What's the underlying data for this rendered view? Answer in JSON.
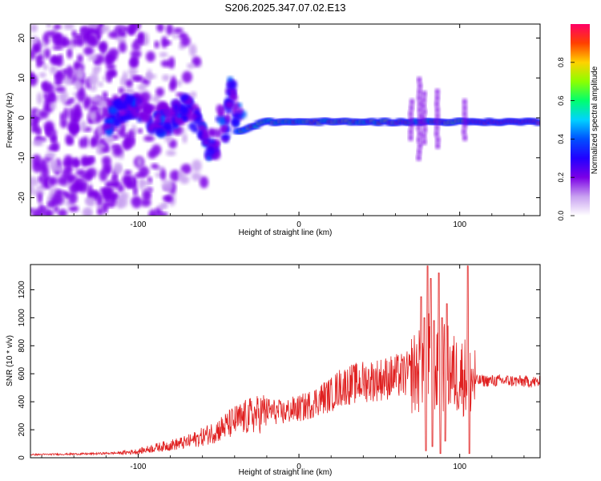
{
  "title": "S206.2025.347.07.02.E13",
  "colors": {
    "snr_line": "#e02020",
    "frame": "#000000",
    "colormap": [
      "#ffffff",
      "#c8a0f0",
      "#7b00e6",
      "#2200ff",
      "#0050ff",
      "#00d2ff",
      "#00ff6e",
      "#8cff00",
      "#ffd200",
      "#ff4000",
      "#ff0066"
    ]
  },
  "chart_data": [
    {
      "type": "heatmap",
      "name": "spectrogram",
      "title": "",
      "xlabel": "Height of straight line (km)",
      "ylabel": "Frequency (Hz)",
      "xlim": [
        -167,
        150
      ],
      "ylim": [
        -24.5,
        23.5
      ],
      "xticks": [
        -100,
        0,
        100
      ],
      "yticks": [
        -20,
        -10,
        0,
        10,
        20
      ],
      "colorbar": {
        "label": "Normalized spectral amplitude",
        "range": [
          0,
          1
        ],
        "ticks": [
          0.0,
          0.2,
          0.4,
          0.6,
          0.8
        ]
      },
      "features": {
        "noise_region_x": [
          -167,
          -115
        ],
        "wandering_track_x": [
          -120,
          -35
        ],
        "tone_start_x": -22,
        "tone_end_x": 150,
        "tone_frequency_hz": -1,
        "strong_tone_start_x": 103
      }
    },
    {
      "type": "line",
      "name": "snr",
      "title": "",
      "xlabel": "Height of straight line (km)",
      "ylabel": "SNR (10 * v/v)",
      "xlim": [
        -167,
        150
      ],
      "ylim": [
        0,
        1380
      ],
      "xticks": [
        -100,
        0,
        100
      ],
      "yticks": [
        0,
        200,
        400,
        600,
        800,
        1000,
        1200
      ],
      "series": [
        {
          "name": "SNR",
          "x": [
            -167,
            -150,
            -130,
            -110,
            -100,
            -90,
            -80,
            -70,
            -60,
            -50,
            -45,
            -40,
            -35,
            -30,
            -25,
            -20,
            -15,
            -10,
            -5,
            0,
            5,
            10,
            15,
            20,
            25,
            30,
            35,
            40,
            50,
            60,
            70,
            75,
            78,
            80,
            82,
            84,
            86,
            88,
            90,
            92,
            95,
            100,
            105,
            107,
            110,
            120,
            130,
            140,
            150
          ],
          "values": [
            22,
            25,
            28,
            35,
            45,
            70,
            90,
            110,
            150,
            200,
            230,
            260,
            280,
            300,
            310,
            340,
            330,
            320,
            340,
            350,
            370,
            400,
            430,
            450,
            500,
            520,
            530,
            545,
            560,
            580,
            600,
            620,
            650,
            700,
            720,
            640,
            600,
            620,
            640,
            650,
            600,
            590,
            580,
            560,
            550,
            550,
            550,
            545,
            540
          ]
        }
      ]
    }
  ]
}
